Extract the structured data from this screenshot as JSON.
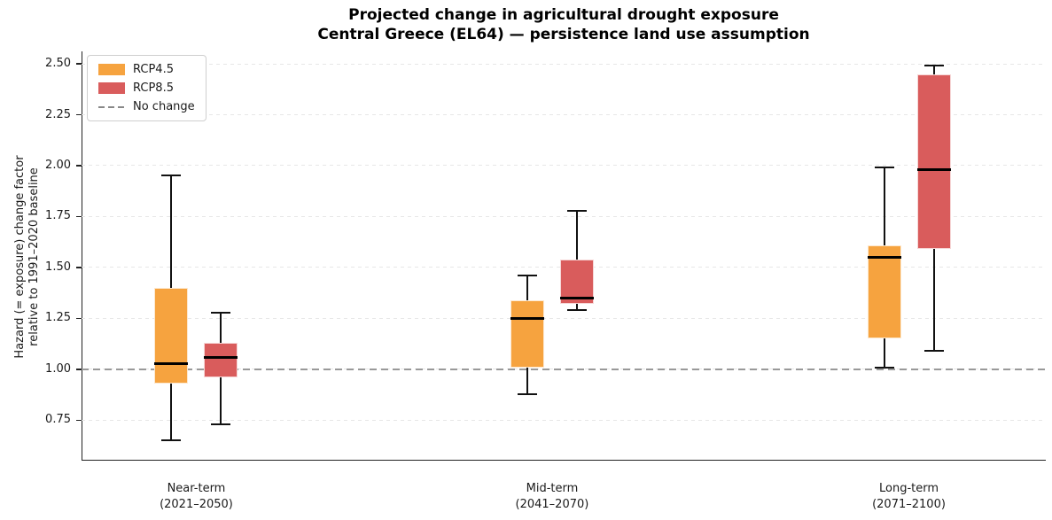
{
  "chart_data": {
    "type": "boxplot",
    "title": "Projected change in agricultural drought exposure",
    "subtitle": "Central Greece (EL64) — persistence land use assumption",
    "ylabel": [
      "Hazard (= exposure) change factor",
      "relative to 1991–2020 baseline"
    ],
    "ylim": [
      0.556,
      2.561
    ],
    "yticks": [
      {
        "value": 0.75,
        "label": "0.75"
      },
      {
        "value": 1.0,
        "label": "1.00"
      },
      {
        "value": 1.25,
        "label": "1.25"
      },
      {
        "value": 1.5,
        "label": "1.50"
      },
      {
        "value": 1.75,
        "label": "1.75"
      },
      {
        "value": 2.0,
        "label": "2.00"
      },
      {
        "value": 2.25,
        "label": "2.25"
      },
      {
        "value": 2.5,
        "label": "2.50"
      }
    ],
    "grid": {
      "show": true,
      "orientation": "horizontal",
      "style": "dashed"
    },
    "reference_line": {
      "value": 1.0,
      "label": "No change",
      "color": "#999999",
      "style": "dashed"
    },
    "legend": {
      "position": "upper-left"
    },
    "categories": [
      {
        "label": "Near-term",
        "sublabel": "(2021–2050)"
      },
      {
        "label": "Mid-term",
        "sublabel": "(2041–2070)"
      },
      {
        "label": "Long-term",
        "sublabel": "(2071–2100)"
      }
    ],
    "series": [
      {
        "name": "RCP4.5",
        "color": "#F6A33F",
        "boxes": [
          {
            "whisker_low": 0.65,
            "q1": 0.93,
            "median": 1.03,
            "q3": 1.4,
            "whisker_high": 1.95
          },
          {
            "whisker_low": 0.88,
            "q1": 1.01,
            "median": 1.25,
            "q3": 1.34,
            "whisker_high": 1.46
          },
          {
            "whisker_low": 1.01,
            "q1": 1.15,
            "median": 1.55,
            "q3": 1.61,
            "whisker_high": 1.99
          }
        ]
      },
      {
        "name": "RCP8.5",
        "color": "#D95C5C",
        "boxes": [
          {
            "whisker_low": 0.73,
            "q1": 0.96,
            "median": 1.06,
            "q3": 1.13,
            "whisker_high": 1.28
          },
          {
            "whisker_low": 1.29,
            "q1": 1.32,
            "median": 1.35,
            "q3": 1.54,
            "whisker_high": 1.78
          },
          {
            "whisker_low": 1.09,
            "q1": 1.59,
            "median": 1.98,
            "q3": 2.45,
            "whisker_high": 2.49
          }
        ]
      }
    ]
  }
}
